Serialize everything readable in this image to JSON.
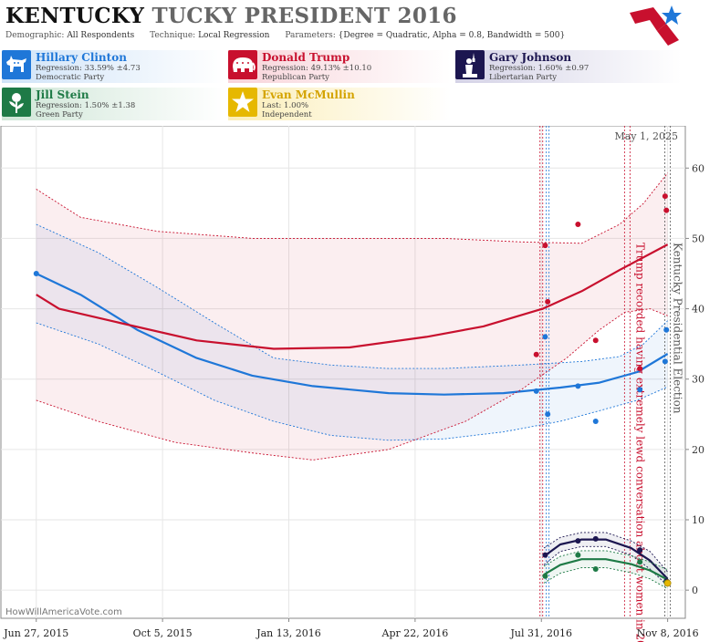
{
  "header": {
    "title_state": "KENTUCKY",
    "title_rest": "TUCKY PRESIDENT 2016",
    "demographic_label": "Demographic:",
    "demographic_value": "All Respondents",
    "technique_label": "Technique:",
    "technique_value": "Local Regression",
    "parameters_label": "Parameters:",
    "parameters_value": "{Degree = Quadratic, Alpha = 0.8, Bandwidth = 500}"
  },
  "candidates": [
    {
      "name": "Hillary Clinton",
      "stat": "Regression: 33.59% ±4.73",
      "party": "Democratic Party",
      "color": "#1f77d8",
      "icon": "donkey-icon"
    },
    {
      "name": "Donald Trump",
      "stat": "Regression: 49.13% ±10.10",
      "party": "Republican Party",
      "color": "#c8102e",
      "icon": "elephant-icon"
    },
    {
      "name": "Gary Johnson",
      "stat": "Regression: 1.60% ±0.97",
      "party": "Libertarian Party",
      "color": "#1c1650",
      "icon": "statue-of-liberty-icon"
    },
    {
      "name": "Jill Stein",
      "stat": "Regression: 1.50% ±1.38",
      "party": "Green Party",
      "color": "#1e7a46",
      "icon": "rose-icon"
    },
    {
      "name": "Evan McMullin",
      "stat": "Last: 1.00%",
      "party": "Independent",
      "color": "#e6b800",
      "icon": "star-icon"
    }
  ],
  "chart_data": {
    "type": "line",
    "x_type": "date",
    "x_ticks": [
      "Jun 27, 2015",
      "Oct 5, 2015",
      "Jan 13, 2016",
      "Apr 22, 2016",
      "Jul 31, 2016",
      "Nov 8, 2016"
    ],
    "y_ticks": [
      0,
      10,
      20,
      30,
      40,
      50,
      60
    ],
    "ylim": [
      -4,
      66
    ],
    "xlim": [
      "2015-05-30",
      "2016-11-22"
    ],
    "annotation_date": "May 1, 2025",
    "events": [
      {
        "date": "2016-10-07",
        "label": "Trump recorded having extremely lewd conversation about women in 2005",
        "color": "#c8102e"
      },
      {
        "date": "2016-11-08",
        "label": "Kentucky Presidential Election",
        "color": "#555555"
      }
    ],
    "series": [
      {
        "name": "Hillary Clinton",
        "color": "#1f77d8",
        "trend": [
          [
            "2015-06-27",
            45
          ],
          [
            "2015-08-01",
            42
          ],
          [
            "2015-09-15",
            37
          ],
          [
            "2015-11-01",
            33
          ],
          [
            "2015-12-15",
            30.5
          ],
          [
            "2016-02-01",
            29
          ],
          [
            "2016-04-01",
            28
          ],
          [
            "2016-05-15",
            27.8
          ],
          [
            "2016-07-01",
            28
          ],
          [
            "2016-08-15",
            28.8
          ],
          [
            "2016-09-15",
            29.5
          ],
          [
            "2016-10-15",
            31
          ],
          [
            "2016-11-08",
            33.59
          ]
        ],
        "upper": [
          [
            "2015-06-27",
            52
          ],
          [
            "2015-08-15",
            48
          ],
          [
            "2015-10-01",
            43
          ],
          [
            "2015-11-15",
            38
          ],
          [
            "2016-01-01",
            33
          ],
          [
            "2016-02-15",
            32
          ],
          [
            "2016-04-01",
            31.5
          ],
          [
            "2016-05-15",
            31.5
          ],
          [
            "2016-07-15",
            32
          ],
          [
            "2016-09-01",
            32.5
          ],
          [
            "2016-10-01",
            33.2
          ],
          [
            "2016-10-20",
            35
          ],
          [
            "2016-11-08",
            38.3
          ]
        ],
        "lower": [
          [
            "2015-06-27",
            38
          ],
          [
            "2015-08-15",
            35
          ],
          [
            "2015-10-01",
            31
          ],
          [
            "2015-11-15",
            27
          ],
          [
            "2016-01-01",
            24
          ],
          [
            "2016-02-15",
            22
          ],
          [
            "2016-04-01",
            21.3
          ],
          [
            "2016-05-15",
            21.5
          ],
          [
            "2016-07-01",
            22.5
          ],
          [
            "2016-08-15",
            24
          ],
          [
            "2016-09-15",
            25.5
          ],
          [
            "2016-10-15",
            27
          ],
          [
            "2016-11-08",
            28.9
          ]
        ],
        "points": [
          [
            "2015-06-27",
            45
          ],
          [
            "2016-07-27",
            28.3
          ],
          [
            "2016-08-03",
            36
          ],
          [
            "2016-08-05",
            25
          ],
          [
            "2016-08-29",
            29
          ],
          [
            "2016-09-12",
            24
          ],
          [
            "2016-10-17",
            28.5
          ],
          [
            "2016-11-06",
            32.5
          ],
          [
            "2016-11-07",
            37
          ]
        ]
      },
      {
        "name": "Donald Trump",
        "color": "#c8102e",
        "trend": [
          [
            "2015-06-27",
            42
          ],
          [
            "2015-07-15",
            40
          ],
          [
            "2015-09-01",
            38
          ],
          [
            "2015-11-01",
            35.5
          ],
          [
            "2016-01-01",
            34.3
          ],
          [
            "2016-03-01",
            34.5
          ],
          [
            "2016-05-01",
            36
          ],
          [
            "2016-06-15",
            37.5
          ],
          [
            "2016-08-01",
            40
          ],
          [
            "2016-09-01",
            42.5
          ],
          [
            "2016-10-01",
            45.5
          ],
          [
            "2016-11-08",
            49.13
          ]
        ],
        "upper": [
          [
            "2015-06-27",
            57
          ],
          [
            "2015-08-01",
            53
          ],
          [
            "2015-10-01",
            51
          ],
          [
            "2015-12-15",
            50
          ],
          [
            "2016-03-01",
            50
          ],
          [
            "2016-05-15",
            50
          ],
          [
            "2016-07-15",
            49.5
          ],
          [
            "2016-09-01",
            49.3
          ],
          [
            "2016-10-01",
            52
          ],
          [
            "2016-10-20",
            55
          ],
          [
            "2016-11-08",
            59.3
          ]
        ],
        "lower": [
          [
            "2015-06-27",
            27
          ],
          [
            "2015-08-15",
            24
          ],
          [
            "2015-10-15",
            21
          ],
          [
            "2015-12-15",
            19.5
          ],
          [
            "2016-02-01",
            18.5
          ],
          [
            "2016-04-01",
            20
          ],
          [
            "2016-06-01",
            24
          ],
          [
            "2016-07-15",
            28.5
          ],
          [
            "2016-08-20",
            33
          ],
          [
            "2016-09-15",
            37
          ],
          [
            "2016-10-05",
            39.5
          ],
          [
            "2016-10-25",
            40
          ],
          [
            "2016-11-08",
            39
          ]
        ],
        "points": [
          [
            "2016-07-27",
            33.5
          ],
          [
            "2016-08-03",
            49
          ],
          [
            "2016-08-05",
            41
          ],
          [
            "2016-08-29",
            52
          ],
          [
            "2016-09-12",
            35.5
          ],
          [
            "2016-10-17",
            31.5
          ],
          [
            "2016-11-06",
            56
          ],
          [
            "2016-11-07",
            54
          ]
        ]
      },
      {
        "name": "Gary Johnson",
        "color": "#1c1650",
        "trend": [
          [
            "2016-08-02",
            4.8
          ],
          [
            "2016-08-15",
            6.5
          ],
          [
            "2016-09-01",
            7.2
          ],
          [
            "2016-09-20",
            7.2
          ],
          [
            "2016-10-10",
            6
          ],
          [
            "2016-10-25",
            4.2
          ],
          [
            "2016-11-08",
            1.6
          ]
        ],
        "upper": [
          [
            "2016-08-02",
            6
          ],
          [
            "2016-08-15",
            7.5
          ],
          [
            "2016-09-01",
            8.2
          ],
          [
            "2016-09-20",
            8.2
          ],
          [
            "2016-10-10",
            7
          ],
          [
            "2016-10-25",
            5.5
          ],
          [
            "2016-11-08",
            2.6
          ]
        ],
        "lower": [
          [
            "2016-08-02",
            3.6
          ],
          [
            "2016-08-15",
            5.5
          ],
          [
            "2016-09-01",
            6.2
          ],
          [
            "2016-09-20",
            6.2
          ],
          [
            "2016-10-10",
            5
          ],
          [
            "2016-10-25",
            3
          ],
          [
            "2016-11-08",
            0.6
          ]
        ],
        "points": [
          [
            "2016-08-03",
            5
          ],
          [
            "2016-08-29",
            7
          ],
          [
            "2016-09-12",
            7.3
          ],
          [
            "2016-10-17",
            5.7
          ],
          [
            "2016-11-07",
            1.3
          ]
        ]
      },
      {
        "name": "Jill Stein",
        "color": "#1e7a46",
        "trend": [
          [
            "2016-08-02",
            2.2
          ],
          [
            "2016-08-15",
            3.6
          ],
          [
            "2016-09-01",
            4.4
          ],
          [
            "2016-09-20",
            4.4
          ],
          [
            "2016-10-10",
            3.7
          ],
          [
            "2016-10-25",
            2.8
          ],
          [
            "2016-11-08",
            1.5
          ]
        ],
        "upper": [
          [
            "2016-08-02",
            3.4
          ],
          [
            "2016-08-15",
            4.8
          ],
          [
            "2016-09-01",
            5.6
          ],
          [
            "2016-09-20",
            5.6
          ],
          [
            "2016-10-10",
            4.9
          ],
          [
            "2016-10-25",
            4
          ],
          [
            "2016-11-08",
            2.9
          ]
        ],
        "lower": [
          [
            "2016-08-02",
            1
          ],
          [
            "2016-08-15",
            2.4
          ],
          [
            "2016-09-01",
            3.2
          ],
          [
            "2016-09-20",
            3.2
          ],
          [
            "2016-10-10",
            2.5
          ],
          [
            "2016-10-25",
            1.6
          ],
          [
            "2016-11-08",
            0.2
          ]
        ],
        "points": [
          [
            "2016-08-03",
            2
          ],
          [
            "2016-08-29",
            5
          ],
          [
            "2016-09-12",
            3
          ],
          [
            "2016-10-17",
            4
          ],
          [
            "2016-11-07",
            1.1
          ]
        ]
      },
      {
        "name": "Evan McMullin",
        "color": "#e6b800",
        "trend": [],
        "upper": [],
        "lower": [],
        "points": [
          [
            "2016-11-08",
            1
          ]
        ]
      }
    ]
  },
  "footer": {
    "watermark": "HowWillAmericaVote.com"
  }
}
